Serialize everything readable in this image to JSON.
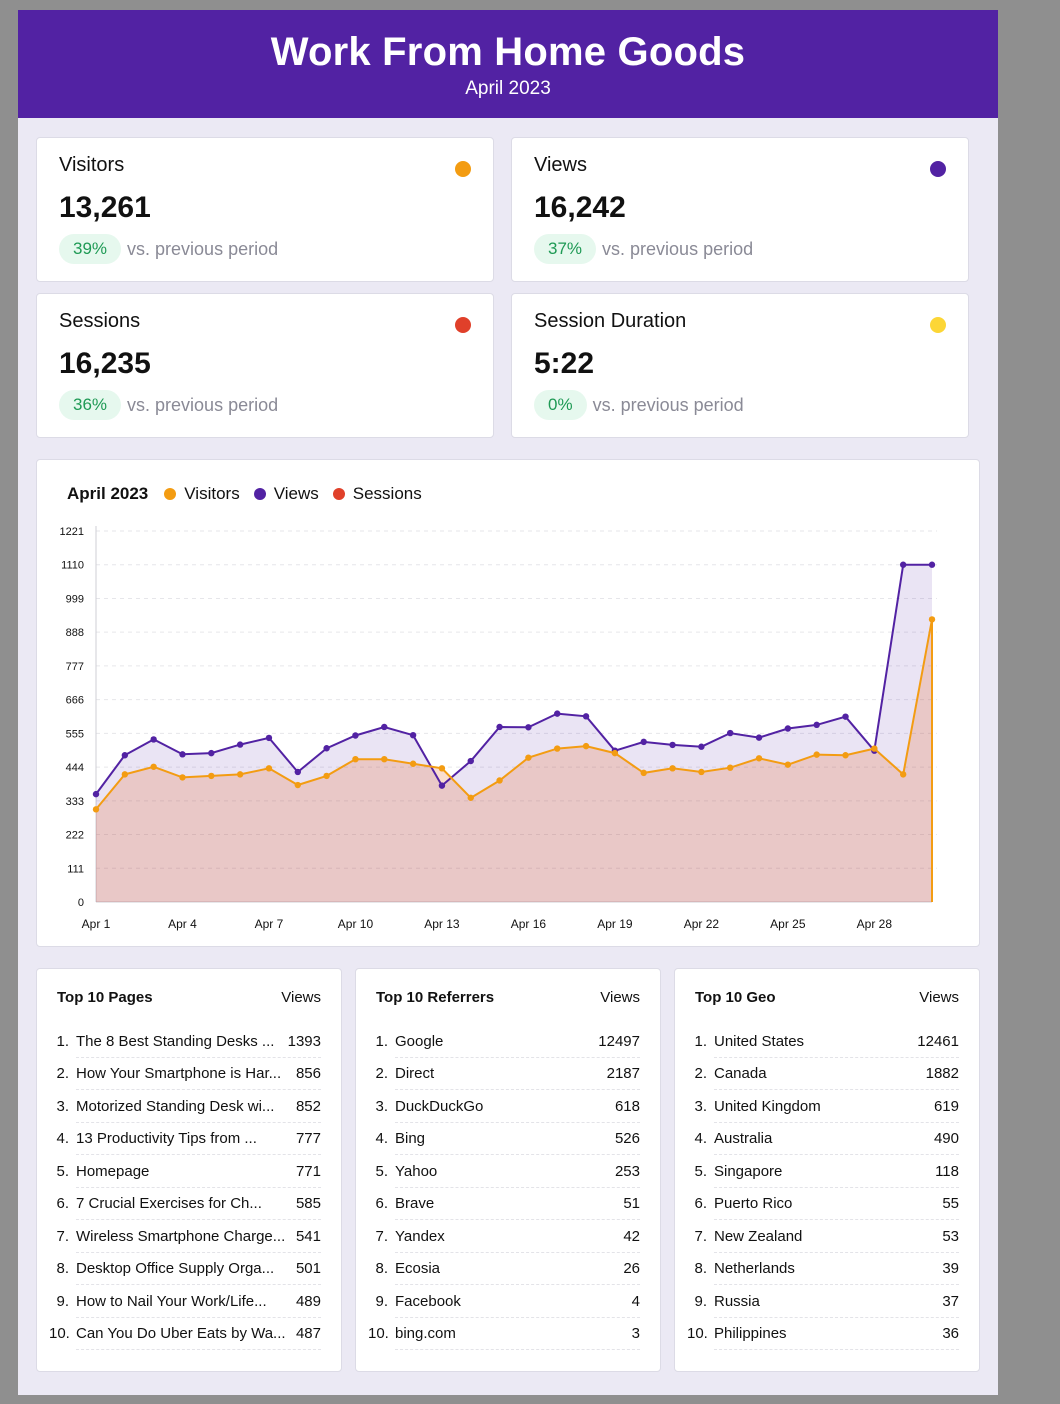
{
  "header": {
    "title": "Work From Home Goods",
    "subtitle": "April 2023"
  },
  "stats": [
    {
      "label": "Visitors",
      "value": "13,261",
      "change": "39%",
      "change_text": "vs. previous period",
      "color": "#f39c12"
    },
    {
      "label": "Views",
      "value": "16,242",
      "change": "37%",
      "change_text": "vs. previous period",
      "color": "#5222a3"
    },
    {
      "label": "Sessions",
      "value": "16,235",
      "change": "36%",
      "change_text": "vs. previous period",
      "color": "#e0402a"
    },
    {
      "label": "Session Duration",
      "value": "5:22",
      "change": "0%",
      "change_text": "vs. previous period",
      "color": "#fcd636"
    }
  ],
  "chart_data": {
    "type": "area",
    "title": "April 2023",
    "legend": [
      {
        "name": "Visitors",
        "color": "#f39c12"
      },
      {
        "name": "Views",
        "color": "#5222a3"
      },
      {
        "name": "Sessions",
        "color": "#e0402a"
      }
    ],
    "ylim": [
      0,
      1221
    ],
    "yticks": [
      0,
      111,
      222,
      333,
      444,
      555,
      666,
      777,
      888,
      999,
      1110,
      1221
    ],
    "x": [
      "Apr 1",
      "Apr 2",
      "Apr 3",
      "Apr 4",
      "Apr 5",
      "Apr 6",
      "Apr 7",
      "Apr 8",
      "Apr 9",
      "Apr 10",
      "Apr 11",
      "Apr 12",
      "Apr 13",
      "Apr 14",
      "Apr 15",
      "Apr 16",
      "Apr 17",
      "Apr 18",
      "Apr 19",
      "Apr 20",
      "Apr 21",
      "Apr 22",
      "Apr 23",
      "Apr 24",
      "Apr 25",
      "Apr 26",
      "Apr 27",
      "Apr 28",
      "Apr 29",
      "Apr 30"
    ],
    "xticks": [
      "Apr 1",
      "Apr 4",
      "Apr 7",
      "Apr 10",
      "Apr 13",
      "Apr 16",
      "Apr 19",
      "Apr 22",
      "Apr 25",
      "Apr 28"
    ],
    "grid": true,
    "series": [
      {
        "name": "Views",
        "color": "#5222a3",
        "values": [
          355,
          483,
          535,
          486,
          490,
          518,
          540,
          428,
          506,
          548,
          576,
          549,
          383,
          464,
          576,
          575,
          620,
          611,
          498,
          527,
          517,
          511,
          556,
          541,
          571,
          583,
          610,
          498,
          1110,
          1110
        ]
      },
      {
        "name": "Visitors",
        "color": "#f39c12",
        "values": [
          305,
          420,
          445,
          410,
          415,
          420,
          440,
          385,
          415,
          470,
          470,
          455,
          440,
          343,
          400,
          475,
          505,
          513,
          490,
          425,
          440,
          428,
          442,
          473,
          452,
          485,
          483,
          505,
          420,
          930
        ]
      },
      {
        "name": "Sessions",
        "color": "#e0402a",
        "values": [
          355,
          483,
          535,
          486,
          490,
          518,
          540,
          428,
          506,
          548,
          576,
          549,
          383,
          464,
          576,
          575,
          620,
          611,
          498,
          527,
          517,
          511,
          556,
          541,
          571,
          583,
          610,
          498,
          1110,
          1110
        ]
      }
    ]
  },
  "lists": [
    {
      "title": "Top 10 Pages",
      "col": "Views",
      "items": [
        {
          "n": "1.",
          "name": "The 8 Best Standing Desks ...",
          "value": "1393"
        },
        {
          "n": "2.",
          "name": "How Your Smartphone is Har...",
          "value": "856"
        },
        {
          "n": "3.",
          "name": "Motorized Standing Desk wi...",
          "value": "852"
        },
        {
          "n": "4.",
          "name": "13 Productivity Tips from ...",
          "value": "777"
        },
        {
          "n": "5.",
          "name": "Homepage",
          "value": "771"
        },
        {
          "n": "6.",
          "name": "7 Crucial Exercises for Ch...",
          "value": "585"
        },
        {
          "n": "7.",
          "name": "Wireless Smartphone Charge...",
          "value": "541"
        },
        {
          "n": "8.",
          "name": "Desktop Office Supply Orga...",
          "value": "501"
        },
        {
          "n": "9.",
          "name": "How to Nail Your Work/Life...",
          "value": "489"
        },
        {
          "n": "10.",
          "name": "Can You Do Uber Eats by Wa...",
          "value": "487"
        }
      ]
    },
    {
      "title": "Top 10 Referrers",
      "col": "Views",
      "items": [
        {
          "n": "1.",
          "name": "Google",
          "value": "12497"
        },
        {
          "n": "2.",
          "name": "Direct",
          "value": "2187"
        },
        {
          "n": "3.",
          "name": "DuckDuckGo",
          "value": "618"
        },
        {
          "n": "4.",
          "name": "Bing",
          "value": "526"
        },
        {
          "n": "5.",
          "name": "Yahoo",
          "value": "253"
        },
        {
          "n": "6.",
          "name": "Brave",
          "value": "51"
        },
        {
          "n": "7.",
          "name": "Yandex",
          "value": "42"
        },
        {
          "n": "8.",
          "name": "Ecosia",
          "value": "26"
        },
        {
          "n": "9.",
          "name": "Facebook",
          "value": "4"
        },
        {
          "n": "10.",
          "name": "bing.com",
          "value": "3"
        }
      ]
    },
    {
      "title": "Top 10 Geo",
      "col": "Views",
      "items": [
        {
          "n": "1.",
          "name": "United States",
          "value": "12461"
        },
        {
          "n": "2.",
          "name": "Canada",
          "value": "1882"
        },
        {
          "n": "3.",
          "name": "United Kingdom",
          "value": "619"
        },
        {
          "n": "4.",
          "name": "Australia",
          "value": "490"
        },
        {
          "n": "5.",
          "name": "Singapore",
          "value": "118"
        },
        {
          "n": "6.",
          "name": "Puerto Rico",
          "value": "55"
        },
        {
          "n": "7.",
          "name": "New Zealand",
          "value": "53"
        },
        {
          "n": "8.",
          "name": "Netherlands",
          "value": "39"
        },
        {
          "n": "9.",
          "name": "Russia",
          "value": "37"
        },
        {
          "n": "10.",
          "name": "Philippines",
          "value": "36"
        }
      ]
    }
  ]
}
